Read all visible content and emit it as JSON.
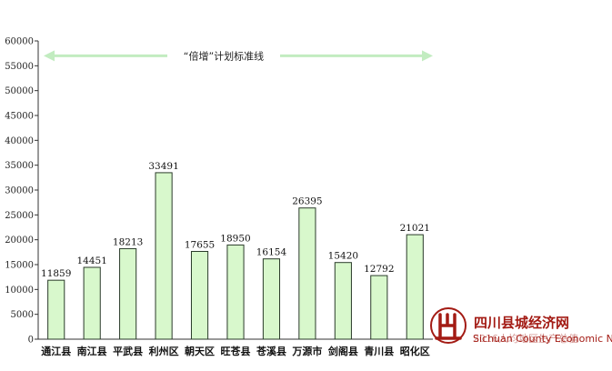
{
  "chart_data": {
    "type": "bar",
    "categories": [
      "通江县",
      "南江县",
      "平武县",
      "利州区",
      "朝天区",
      "旺苍县",
      "苍溪县",
      "万源市",
      "剑阁县",
      "青川县",
      "昭化区"
    ],
    "values": [
      11859,
      14451,
      18213,
      33491,
      17655,
      18950,
      16154,
      26395,
      15420,
      12792,
      21021
    ],
    "yticks": [
      "0",
      "5000",
      "10000",
      "15000",
      "20000",
      "25000",
      "30000",
      "35000",
      "40000",
      "45000",
      "50000",
      "55000",
      "60000"
    ],
    "ylim": [
      0,
      60000
    ],
    "title": "",
    "xlabel": "",
    "ylabel": "",
    "grid": false,
    "annotation": {
      "text": "“倍增”计划标准线",
      "value": 57000
    },
    "colors": {
      "bar_fill": "#d8f8cc",
      "bar_stroke": "#2a3a2a",
      "annotation_line": "#c2ecc0"
    }
  },
  "watermark": {
    "title_cn": "四川县城经济网",
    "subtitle_cn": "2016人均地区生产总值",
    "title_en": "Sichuan County Economic Net",
    "logo_icon": "county-seal-logo",
    "color": "#a31b14"
  }
}
